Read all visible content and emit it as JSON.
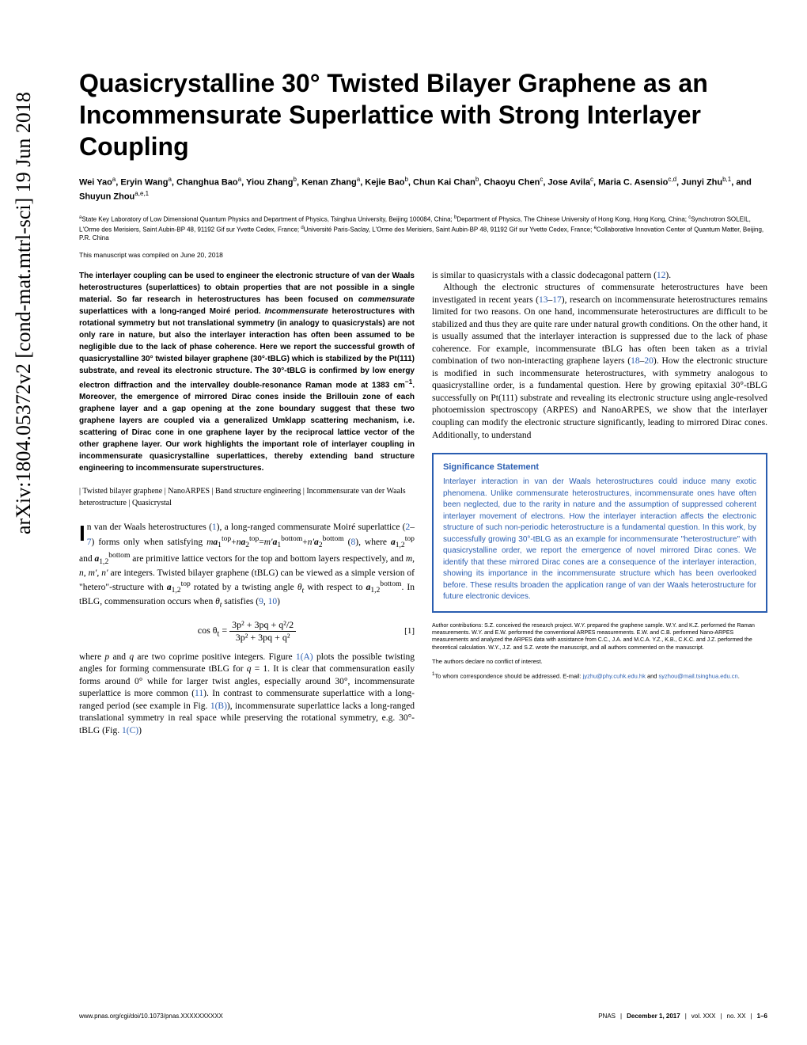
{
  "arxiv": "arXiv:1804.05372v2  [cond-mat.mtrl-sci]  19 Jun 2018",
  "title": "Quasicrystalline 30° Twisted Bilayer Graphene as an Incommensurate Superlattice with Strong Interlayer Coupling",
  "authors_html": "Wei Yao<sup>a</sup>, Eryin Wang<sup>a</sup>, Changhua Bao<sup>a</sup>, Yiou Zhang<sup>b</sup>, Kenan Zhang<sup>a</sup>, Kejie Bao<sup>b</sup>, Chun Kai Chan<sup>b</sup>, Chaoyu Chen<sup>c</sup>, Jose Avila<sup>c</sup>, Maria C. Asensio<sup>c,d</sup>, Junyi Zhu<sup>b,1</sup>, and Shuyun Zhou<sup>a,e,1</sup>",
  "affiliations_html": "<sup>a</sup>State Key Laboratory of Low Dimensional Quantum Physics and Department of Physics, Tsinghua University, Beijing 100084, China; <sup>b</sup>Department of Physics, The Chinese University of Hong Kong, Hong Kong, China; <sup>c</sup>Synchrotron SOLEIL, L'Orme des Merisiers, Saint Aubin-BP 48, 91192 Gif sur Yvette Cedex, France; <sup>d</sup>Université Paris-Saclay, L'Orme des Merisiers, Saint Aubin-BP 48, 91192 Gif sur Yvette Cedex, France; <sup>e</sup>Collaborative Innovation Center of Quantum Matter, Beijing, P.R. China",
  "compiled": "This manuscript was compiled on June 20, 2018",
  "abstract_html": "The interlayer coupling can be used to engineer the electronic structure of van der Waals heterostructures (superlattices) to obtain properties that are not possible in a single material. So far research in heterostructures has been focused on <span class=\"italic\">commensurate</span> superlattices with a long-ranged Moiré period. <span class=\"italic\">Incommensurate</span> heterostructures with rotational symmetry but not translational symmetry (in analogy to quasicrystals) are not only rare in nature, but also the interlayer interaction has often been assumed to be negligible due to the lack of phase coherence. Here we report the successful growth of quasicrystalline 30° twisted bilayer graphene (30°-tBLG) which is stabilized by the Pt(111) substrate, and reveal its electronic structure. The 30°-tBLG is confirmed by low energy electron diffraction and the intervalley double-resonance Raman mode at 1383 cm<sup>−1</sup>. Moreover, the emergence of mirrored Dirac cones inside the Brillouin zone of each graphene layer and a gap opening at the zone boundary suggest that these two graphene layers are coupled via a generalized Umklapp scattering mechanism, i.e. scattering of Dirac cone in one graphene layer by the reciprocal lattice vector of the other graphene layer. Our work highlights the important role of interlayer coupling in incommensurate quasicrystalline superlattices, thereby extending band structure engineering to incommensurate superstructures.",
  "keywords": "| Twisted bilayer graphene | NanoARPES | Band structure engineering | Incommensurate van der Waals heterostructure | Quasicrystal",
  "body_left_html": "<span class=\"dropcap\">I</span>n van der Waals heterostructures (<a href=\"#\">1</a>), a long-ranged commensurate Moiré superlattice (<a href=\"#\">2</a>–<a href=\"#\">7</a>) forms only when satisfying <i>m</i><b><i>a</i></b><sub>1</sub><sup>top</sup>+<i>n</i><b><i>a</i></b><sub>2</sub><sup>top</sup>=<i>m′</i><b><i>a</i></b><sub>1</sub><sup>bottom</sup>+<i>n′</i><b><i>a</i></b><sub>2</sub><sup>bottom</sup> (<a href=\"#\">8</a>), where <b><i>a</i></b><sub>1,2</sub><sup>top</sup> and <b><i>a</i></b><sub>1,2</sub><sup>bottom</sup> are primitive lattice vectors for the top and bottom layers respectively, and <i>m</i>, <i>n</i>, <i>m′</i>, <i>n′</i> are integers. Twisted bilayer graphene (tBLG) can be viewed as a simple version of \"hetero\"-structure with <b><i>a</i></b><sub>1,2</sub><sup>top</sup> rotated by a twisting angle <i>θ<sub>t</sub></i> with respect to <b><i>a</i></b><sub>1,2</sub><sup>bottom</sup>. In tBLG, commensuration occurs when <i>θ<sub>t</sub></i> satisfies (<a href=\"#\">9</a>, <a href=\"#\">10</a>)",
  "equation": {
    "lhs": "cos θ",
    "sub": "t",
    "num": "3p² + 3pq + q²/2",
    "den": "3p² + 3pq + q²",
    "eqnum": "[1]"
  },
  "body_left2_html": "where <i>p</i> and <i>q</i> are two coprime positive integers. Figure <a href=\"#\">1(A)</a> plots the possible twisting angles for forming commensurate tBLG for <i>q</i> = 1. It is clear that commensuration easily forms around 0° while for larger twist angles, especially around 30°, incommensurate superlattice is more common (<a href=\"#\">11</a>). In contrast to commensurate superlattice with a long-ranged period (see example in Fig. <a href=\"#\">1(B)</a>), incommensurate superlattice lacks a long-ranged translational symmetry in real space while preserving the rotational symmetry, e.g. 30°-tBLG (Fig. <a href=\"#\">1(C)</a>)",
  "body_right1_html": "is similar to quasicrystals with a classic dodecagonal pattern (<a href=\"#\">12</a>).",
  "body_right2_html": "Although the electronic structures of commensurate heterostructures have been investigated in recent years (<a href=\"#\">13</a>–<a href=\"#\">17</a>), research on incommensurate heterostructures remains limited for two reasons. On one hand, incommensurate heterostructures are difficult to be stabilized and thus they are quite rare under natural growth conditions. On the other hand, it is usually assumed that the interlayer interaction is suppressed due to the lack of phase coherence. For example, incommensurate tBLG has often been taken as a trivial combination of two non-interacting graphene layers (<a href=\"#\">18</a>–<a href=\"#\">20</a>). How the electronic structure is modified in such incommensurate heterostructures, with symmetry analogous to quasicrystalline order, is a fundamental question. Here by growing epitaxial 30°-tBLG successfully on Pt(111) substrate and revealing its electronic structure using angle-resolved photoemission spectroscopy (ARPES) and NanoARPES, we show that the interlayer coupling can modify the electronic structure significantly, leading to mirrored Dirac cones. Additionally, to understand",
  "sig_title": "Significance Statement",
  "sig_body": "Interlayer interaction in van der Waals heterostructures could induce many exotic phenomena. Unlike commensurate heterostructures, incommensurate ones have often been neglected, due to the rarity in nature and the assumption of suppressed coherent interlayer movement of electrons. How the interlayer interaction affects the electronic structure of such non-periodic heterostructure is a fundamental question. In this work, by successfully growing 30°-tBLG as an example for incommensurate \"heterostructure\" with quasicrystalline order, we report the emergence of novel mirrored Dirac cones. We identify that these mirrored Dirac cones are a consequence of the interlayer interaction, showing its importance in the incommensurate structure which has been overlooked before. These results broaden the application range of van der Waals heterostructure for future electronic devices.",
  "author_contrib": "Author contributions: S.Z. conceived the research project. W.Y. prepared the graphene sample. W.Y. and K.Z. performed the Raman measurements. W.Y. and E.W. performed the conventional ARPES measurements. E.W. and C.B. performed Nano-ARPES measurements and analyzed the ARPES data with assistance from C.C., J.A. and M.C.A. Y.Z., K.B., C.K.C. and J.Z. performed the theoretical calculation. W.Y., J.Z. and S.Z. wrote the manuscript, and all authors commented on the manuscript.",
  "conflict": "The authors declare no conflict of interest.",
  "correspondence_html": "<sup>1</sup>To whom correspondence should be addressed. E-mail: <a href=\"#\">jyzhu@phy.cuhk.edu.hk</a> and <a href=\"#\">syzhou@mail.tsinghua.edu.cn</a>.",
  "footer": {
    "left": "www.pnas.org/cgi/doi/10.1073/pnas.XXXXXXXXXX",
    "right_html": "PNAS<span class=\"sep\">|</span><b>December 1, 2017</b><span class=\"sep\">|</span>vol. XXX<span class=\"sep\">|</span>no. XX<span class=\"sep\">|</span><b>1–6</b>"
  },
  "colors": {
    "link": "#2a5db0",
    "sig_border": "#2a5db0",
    "text": "#000000",
    "bg": "#ffffff"
  }
}
